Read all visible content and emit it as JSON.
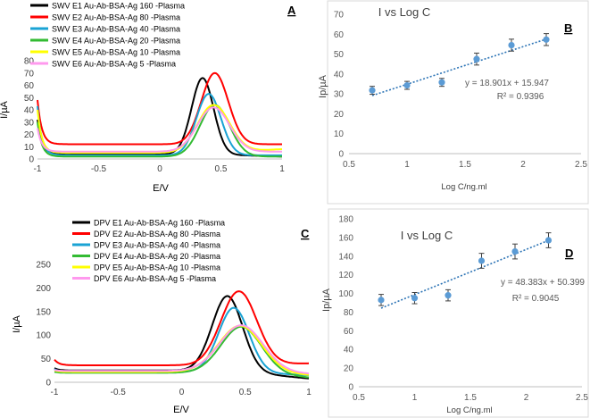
{
  "chart_data": [
    {
      "id": "A",
      "panel_label": "A",
      "type": "line",
      "title": "",
      "xlabel": "E/V",
      "ylabel": "I/µA",
      "xlim": [
        -1,
        1
      ],
      "ylim": [
        0,
        80
      ],
      "xticks": [
        -1,
        -0.5,
        0,
        0.5,
        1
      ],
      "xtick_labels": [
        "-1",
        "-0.5",
        "0",
        "0.5",
        "1"
      ],
      "yticks": [
        0,
        10,
        20,
        30,
        40,
        50,
        60,
        70,
        80
      ],
      "ytick_labels": [
        "0",
        "10",
        "20",
        "30",
        "40",
        "50",
        "60",
        "70",
        "80"
      ],
      "grid": false,
      "legend_position": "top",
      "series": [
        {
          "name": "SWV E1 Au-Ab-BSA-Ag 160 -Plasma",
          "color": "#000000",
          "start": 32,
          "base": 4,
          "peak_x": 0.35,
          "peak": 66,
          "width": 0.09,
          "end": 2
        },
        {
          "name": "SWV E2 Au-Ab-BSA-Ag 80 -Plasma",
          "color": "#ff0000",
          "start": 48,
          "base": 12,
          "peak_x": 0.45,
          "peak": 70,
          "width": 0.11,
          "end": 12
        },
        {
          "name": "SWV E3 Au-Ab-BSA-Ag 40 -Plasma",
          "color": "#1aa3d4",
          "start": 43,
          "base": 3,
          "peak_x": 0.4,
          "peak": 53,
          "width": 0.1,
          "end": 3
        },
        {
          "name": "SWV E4 Au-Ab-BSA-Ag 20 -Plasma",
          "color": "#33bb33",
          "start": 30,
          "base": 2,
          "peak_x": 0.45,
          "peak": 44,
          "width": 0.12,
          "end": 2
        },
        {
          "name": "SWV E5 Au-Ab-BSA-Ag 10 -Plasma",
          "color": "#ffff00",
          "start": 40,
          "base": 5,
          "peak_x": 0.44,
          "peak": 44,
          "width": 0.13,
          "end": 8
        },
        {
          "name": "SWV E6 Au-Ab-BSA-Ag 5 -Plasma",
          "color": "#ff99ee",
          "start": 25,
          "base": 6,
          "peak_x": 0.44,
          "peak": 42,
          "width": 0.13,
          "end": 6
        }
      ]
    },
    {
      "id": "B",
      "panel_label": "B",
      "type": "scatter",
      "title": "I vs Log C",
      "xlabel": "Log C/ng.ml",
      "ylabel": "Ip/µA",
      "xlim": [
        0.5,
        2.5
      ],
      "ylim": [
        0,
        70
      ],
      "xticks": [
        0.5,
        1,
        1.5,
        2,
        2.5
      ],
      "xtick_labels": [
        "0.5",
        "1",
        "1.5",
        "2",
        "2.5"
      ],
      "yticks": [
        0,
        10,
        20,
        30,
        40,
        50,
        60,
        70
      ],
      "ytick_labels": [
        "0",
        "10",
        "20",
        "30",
        "40",
        "50",
        "60",
        "70"
      ],
      "grid": false,
      "color": "#5b9bd5",
      "x": [
        0.7,
        1.0,
        1.3,
        1.6,
        1.9,
        2.2
      ],
      "y": [
        31.8,
        34.3,
        35.8,
        47.5,
        54.5,
        57.3
      ],
      "yerr": [
        2.0,
        2.0,
        2.0,
        3.0,
        3.0,
        3.0
      ],
      "trendline": {
        "slope": 18.901,
        "intercept": 15.947
      },
      "equation": "y = 18.901x + 15.947",
      "r2_label": "R² = 0.9396"
    },
    {
      "id": "C",
      "panel_label": "C",
      "type": "line",
      "title": "",
      "xlabel": "E/V",
      "ylabel": "I/µA",
      "xlim": [
        -1,
        1
      ],
      "ylim": [
        0,
        250
      ],
      "xticks": [
        -1,
        -0.5,
        0,
        0.5,
        1
      ],
      "xtick_labels": [
        "-1",
        "-0.5",
        "0",
        "0.5",
        "1"
      ],
      "yticks": [
        0,
        50,
        100,
        150,
        200,
        250
      ],
      "ytick_labels": [
        "0",
        "50",
        "100",
        "150",
        "200",
        "250"
      ],
      "grid": false,
      "legend_position": "top",
      "series": [
        {
          "name": "DPV E1 Au-Ab-BSA-Ag 160 -Plasma",
          "color": "#000000",
          "start": 30,
          "base": 25,
          "peak_x": 0.36,
          "peak": 183,
          "width": 0.12,
          "end": 8
        },
        {
          "name": "DPV E2 Au-Ab-BSA-Ag 80 -Plasma",
          "color": "#ff0000",
          "start": 48,
          "base": 36,
          "peak_x": 0.45,
          "peak": 193,
          "width": 0.14,
          "end": 40
        },
        {
          "name": "DPV E3 Au-Ab-BSA-Ag 40 -Plasma",
          "color": "#1aa3d4",
          "start": 28,
          "base": 22,
          "peak_x": 0.41,
          "peak": 158,
          "width": 0.12,
          "end": 15
        },
        {
          "name": "DPV E4 Au-Ab-BSA-Ag 20 -Plasma",
          "color": "#33bb33",
          "start": 22,
          "base": 20,
          "peak_x": 0.47,
          "peak": 118,
          "width": 0.16,
          "end": 10
        },
        {
          "name": "DPV E5 Au-Ab-BSA-Ag 10 -Plasma",
          "color": "#ffff00",
          "start": 25,
          "base": 22,
          "peak_x": 0.46,
          "peak": 120,
          "width": 0.17,
          "end": 15
        },
        {
          "name": "DPV E6 Au-Ab-BSA-Ag 5 -Plasma",
          "color": "#ff99ee",
          "start": 26,
          "base": 24,
          "peak_x": 0.47,
          "peak": 121,
          "width": 0.17,
          "end": 18
        }
      ]
    },
    {
      "id": "D",
      "panel_label": "D",
      "type": "scatter",
      "title": "I vs Log C",
      "xlabel": "Log C/ng.ml",
      "ylabel": "Ip/µA",
      "xlim": [
        0.5,
        2.5
      ],
      "ylim": [
        0,
        180
      ],
      "xticks": [
        0.5,
        1,
        1.5,
        2,
        2.5
      ],
      "xtick_labels": [
        "0.5",
        "1",
        "1.5",
        "2",
        "2.5"
      ],
      "yticks": [
        0,
        20,
        40,
        60,
        80,
        100,
        120,
        140,
        160,
        180
      ],
      "ytick_labels": [
        "0",
        "20",
        "40",
        "60",
        "80",
        "100",
        "120",
        "140",
        "160",
        "180"
      ],
      "grid": false,
      "color": "#5b9bd5",
      "x": [
        0.7,
        1.0,
        1.3,
        1.6,
        1.9,
        2.2
      ],
      "y": [
        93,
        95,
        98,
        135,
        145,
        157
      ],
      "yerr": [
        6,
        6,
        6,
        8,
        8,
        8
      ],
      "trendline": {
        "slope": 48.383,
        "intercept": 50.399
      },
      "equation": "y = 48.383x + 50.399",
      "r2_label": "R² = 0.9045"
    }
  ]
}
